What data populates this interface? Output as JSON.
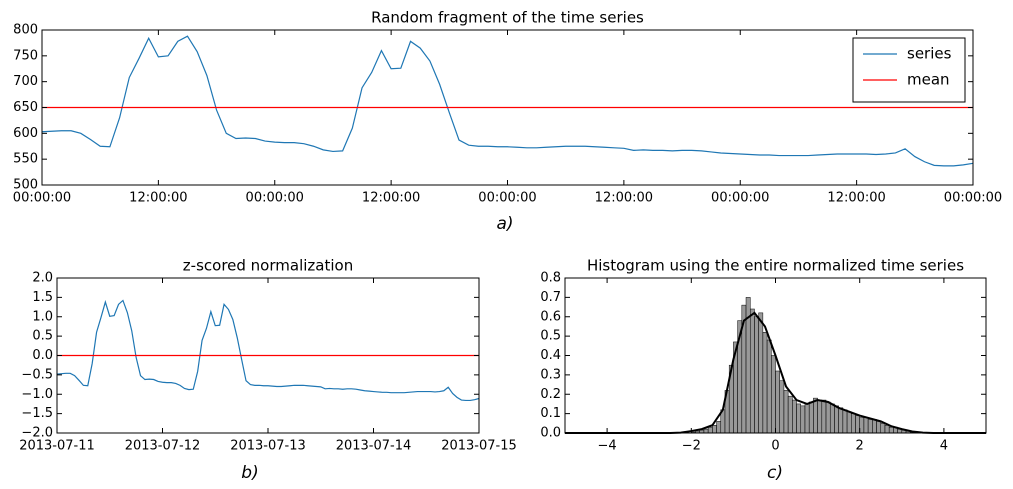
{
  "chart_data": [
    {
      "type": "line",
      "title": "Random fragment of the time series",
      "caption": "a)",
      "x": [
        0,
        1,
        2,
        3,
        4,
        5,
        6,
        7,
        8,
        9,
        10,
        11,
        12,
        13,
        14,
        15,
        16,
        17,
        18,
        19,
        20,
        21,
        22,
        23,
        24,
        25,
        26,
        27,
        28,
        29,
        30,
        31,
        32,
        33,
        34,
        35,
        36,
        37,
        38,
        39,
        40,
        41,
        42,
        43,
        44,
        45,
        46,
        47,
        48,
        49,
        50,
        51,
        52,
        53,
        54,
        55,
        56,
        57,
        58,
        59,
        60,
        61,
        62,
        63,
        64,
        65,
        66,
        67,
        68,
        69,
        70,
        71,
        72,
        73,
        74,
        75,
        76,
        77,
        78,
        79,
        80,
        81,
        82,
        83,
        84,
        85,
        86,
        87,
        88,
        89,
        90,
        91,
        92,
        93,
        94,
        95,
        96
      ],
      "series": [
        {
          "name": "series",
          "color": "#1f77b4",
          "values": [
            603,
            604,
            605,
            605,
            600,
            588,
            575,
            574,
            630,
            708,
            745,
            784,
            748,
            750,
            778,
            788,
            758,
            712,
            645,
            600,
            590,
            591,
            590,
            585,
            583,
            582,
            582,
            580,
            575,
            568,
            565,
            566,
            610,
            688,
            718,
            760,
            725,
            726,
            778,
            765,
            740,
            695,
            640,
            587,
            577,
            575,
            575,
            574,
            574,
            573,
            572,
            572,
            573,
            574,
            575,
            575,
            575,
            574,
            573,
            572,
            571,
            567,
            568,
            567,
            567,
            566,
            567,
            567,
            566,
            564,
            562,
            561,
            560,
            559,
            558,
            558,
            557,
            557,
            557,
            557,
            558,
            559,
            560,
            560,
            560,
            560,
            559,
            560,
            562,
            570,
            555,
            545,
            538,
            537,
            537,
            539,
            542
          ]
        }
      ],
      "hline": {
        "name": "mean",
        "value": 650,
        "color": "#ff0000"
      },
      "legend": "upper right",
      "xlim": [
        0,
        96
      ],
      "xticks": [
        {
          "value": 0,
          "label": "00:00:00"
        },
        {
          "value": 12,
          "label": "12:00:00"
        },
        {
          "value": 24,
          "label": "00:00:00"
        },
        {
          "value": 36,
          "label": "12:00:00"
        },
        {
          "value": 48,
          "label": "00:00:00"
        },
        {
          "value": 60,
          "label": "12:00:00"
        },
        {
          "value": 72,
          "label": "00:00:00"
        },
        {
          "value": 84,
          "label": "12:00:00"
        },
        {
          "value": 96,
          "label": "00:00:00"
        }
      ],
      "ylim": [
        500,
        800
      ],
      "yticks": [
        500,
        550,
        600,
        650,
        700,
        750,
        800
      ]
    },
    {
      "type": "line",
      "title": "z-scored normalization",
      "caption": "b)",
      "x": [
        0,
        1,
        2,
        3,
        4,
        5,
        6,
        7,
        8,
        9,
        10,
        11,
        12,
        13,
        14,
        15,
        16,
        17,
        18,
        19,
        20,
        21,
        22,
        23,
        24,
        25,
        26,
        27,
        28,
        29,
        30,
        31,
        32,
        33,
        34,
        35,
        36,
        37,
        38,
        39,
        40,
        41,
        42,
        43,
        44,
        45,
        46,
        47,
        48,
        49,
        50,
        51,
        52,
        53,
        54,
        55,
        56,
        57,
        58,
        59,
        60,
        61,
        62,
        63,
        64,
        65,
        66,
        67,
        68,
        69,
        70,
        71,
        72,
        73,
        74,
        75,
        76,
        77,
        78,
        79,
        80,
        81,
        82,
        83,
        84,
        85,
        86,
        87,
        88,
        89,
        90,
        91,
        92,
        93,
        94,
        95,
        96
      ],
      "series": [
        {
          "color": "#1f77b4",
          "values": [
            -0.48,
            -0.47,
            -0.46,
            -0.46,
            -0.52,
            -0.64,
            -0.77,
            -0.78,
            -0.21,
            0.6,
            0.98,
            1.38,
            1.01,
            1.03,
            1.32,
            1.42,
            1.11,
            0.64,
            -0.05,
            -0.52,
            -0.62,
            -0.61,
            -0.62,
            -0.67,
            -0.69,
            -0.7,
            -0.7,
            -0.72,
            -0.77,
            -0.85,
            -0.88,
            -0.87,
            -0.41,
            0.39,
            0.7,
            1.13,
            0.77,
            0.78,
            1.32,
            1.19,
            0.93,
            0.46,
            -0.1,
            -0.65,
            -0.75,
            -0.77,
            -0.77,
            -0.78,
            -0.78,
            -0.79,
            -0.8,
            -0.8,
            -0.79,
            -0.78,
            -0.77,
            -0.77,
            -0.77,
            -0.78,
            -0.79,
            -0.8,
            -0.81,
            -0.86,
            -0.85,
            -0.86,
            -0.86,
            -0.87,
            -0.86,
            -0.86,
            -0.87,
            -0.89,
            -0.91,
            -0.92,
            -0.93,
            -0.94,
            -0.95,
            -0.95,
            -0.96,
            -0.96,
            -0.96,
            -0.96,
            -0.95,
            -0.94,
            -0.93,
            -0.93,
            -0.93,
            -0.93,
            -0.94,
            -0.93,
            -0.91,
            -0.82,
            -0.98,
            -1.08,
            -1.15,
            -1.16,
            -1.16,
            -1.14,
            -1.11
          ]
        }
      ],
      "hline": {
        "value": 0,
        "color": "#ff0000"
      },
      "xlim": [
        0,
        96
      ],
      "xticks": [
        {
          "value": 0,
          "label": "2013-07-11"
        },
        {
          "value": 24,
          "label": "2013-07-12"
        },
        {
          "value": 48,
          "label": "2013-07-13"
        },
        {
          "value": 72,
          "label": "2013-07-14"
        },
        {
          "value": 96,
          "label": "2013-07-15"
        }
      ],
      "ylim": [
        -2,
        2
      ],
      "yticks": [
        {
          "value": -2,
          "label": "−2.0"
        },
        {
          "value": -1.5,
          "label": "−1.5"
        },
        {
          "value": -1,
          "label": "−1.0"
        },
        {
          "value": -0.5,
          "label": "−0.5"
        },
        {
          "value": 0,
          "label": "0.0"
        },
        {
          "value": 0.5,
          "label": "0.5"
        },
        {
          "value": 1,
          "label": "1.0"
        },
        {
          "value": 1.5,
          "label": "1.5"
        },
        {
          "value": 2,
          "label": "2.0"
        }
      ]
    },
    {
      "type": "histogram",
      "title": "Histogram using the entire normalized time series",
      "caption": "c)",
      "bins": [
        -2.0,
        -1.9,
        -1.8,
        -1.7,
        -1.6,
        -1.5,
        -1.4,
        -1.3,
        -1.2,
        -1.1,
        -1.0,
        -0.9,
        -0.8,
        -0.7,
        -0.6,
        -0.5,
        -0.4,
        -0.3,
        -0.2,
        -0.1,
        0.0,
        0.1,
        0.2,
        0.3,
        0.4,
        0.5,
        0.6,
        0.7,
        0.8,
        0.9,
        1.0,
        1.1,
        1.2,
        1.3,
        1.4,
        1.5,
        1.6,
        1.7,
        1.8,
        1.9,
        2.0,
        2.1,
        2.2,
        2.3,
        2.4,
        2.5,
        2.6,
        2.7,
        2.8,
        2.9,
        3.0,
        3.1,
        3.2,
        3.3,
        3.4
      ],
      "values": [
        0.005,
        0.01,
        0.015,
        0.02,
        0.03,
        0.04,
        0.06,
        0.12,
        0.22,
        0.35,
        0.47,
        0.58,
        0.66,
        0.7,
        0.64,
        0.6,
        0.62,
        0.52,
        0.48,
        0.4,
        0.32,
        0.27,
        0.22,
        0.19,
        0.17,
        0.15,
        0.14,
        0.15,
        0.16,
        0.18,
        0.17,
        0.17,
        0.16,
        0.15,
        0.14,
        0.13,
        0.12,
        0.11,
        0.1,
        0.09,
        0.08,
        0.08,
        0.07,
        0.07,
        0.06,
        0.05,
        0.04,
        0.03,
        0.03,
        0.02,
        0.015,
        0.01,
        0.005,
        0.003
      ],
      "color": "#808080",
      "curve": {
        "color": "#000000",
        "x": [
          -5,
          -4.75,
          -4.5,
          -4.25,
          -4,
          -3.75,
          -3.5,
          -3.25,
          -3,
          -2.75,
          -2.5,
          -2.25,
          -2,
          -1.75,
          -1.5,
          -1.25,
          -1,
          -0.75,
          -0.5,
          -0.25,
          0,
          0.25,
          0.5,
          0.75,
          1,
          1.25,
          1.5,
          1.75,
          2,
          2.25,
          2.5,
          2.75,
          3,
          3.25,
          3.5,
          3.75,
          4,
          4.25,
          4.5,
          4.75,
          5
        ],
        "y": [
          0,
          0,
          0,
          0,
          0,
          0,
          0,
          0,
          0,
          0,
          0,
          0.002,
          0.01,
          0.02,
          0.04,
          0.12,
          0.38,
          0.58,
          0.62,
          0.55,
          0.4,
          0.24,
          0.17,
          0.15,
          0.17,
          0.16,
          0.13,
          0.11,
          0.09,
          0.075,
          0.06,
          0.035,
          0.02,
          0.008,
          0.002,
          0,
          0,
          0,
          0,
          0,
          0
        ]
      },
      "xlim": [
        -5,
        5
      ],
      "xticks": [
        {
          "value": -4,
          "label": "−4"
        },
        {
          "value": -2,
          "label": "−2"
        },
        0,
        2,
        4
      ],
      "ylim": [
        0,
        0.8
      ],
      "yticks": [
        {
          "value": 0,
          "label": "0.0"
        },
        {
          "value": 0.1,
          "label": "0.1"
        },
        {
          "value": 0.2,
          "label": "0.2"
        },
        {
          "value": 0.3,
          "label": "0.3"
        },
        {
          "value": 0.4,
          "label": "0.4"
        },
        {
          "value": 0.5,
          "label": "0.5"
        },
        {
          "value": 0.6,
          "label": "0.6"
        },
        {
          "value": 0.7,
          "label": "0.7"
        },
        {
          "value": 0.8,
          "label": "0.8"
        }
      ]
    }
  ]
}
